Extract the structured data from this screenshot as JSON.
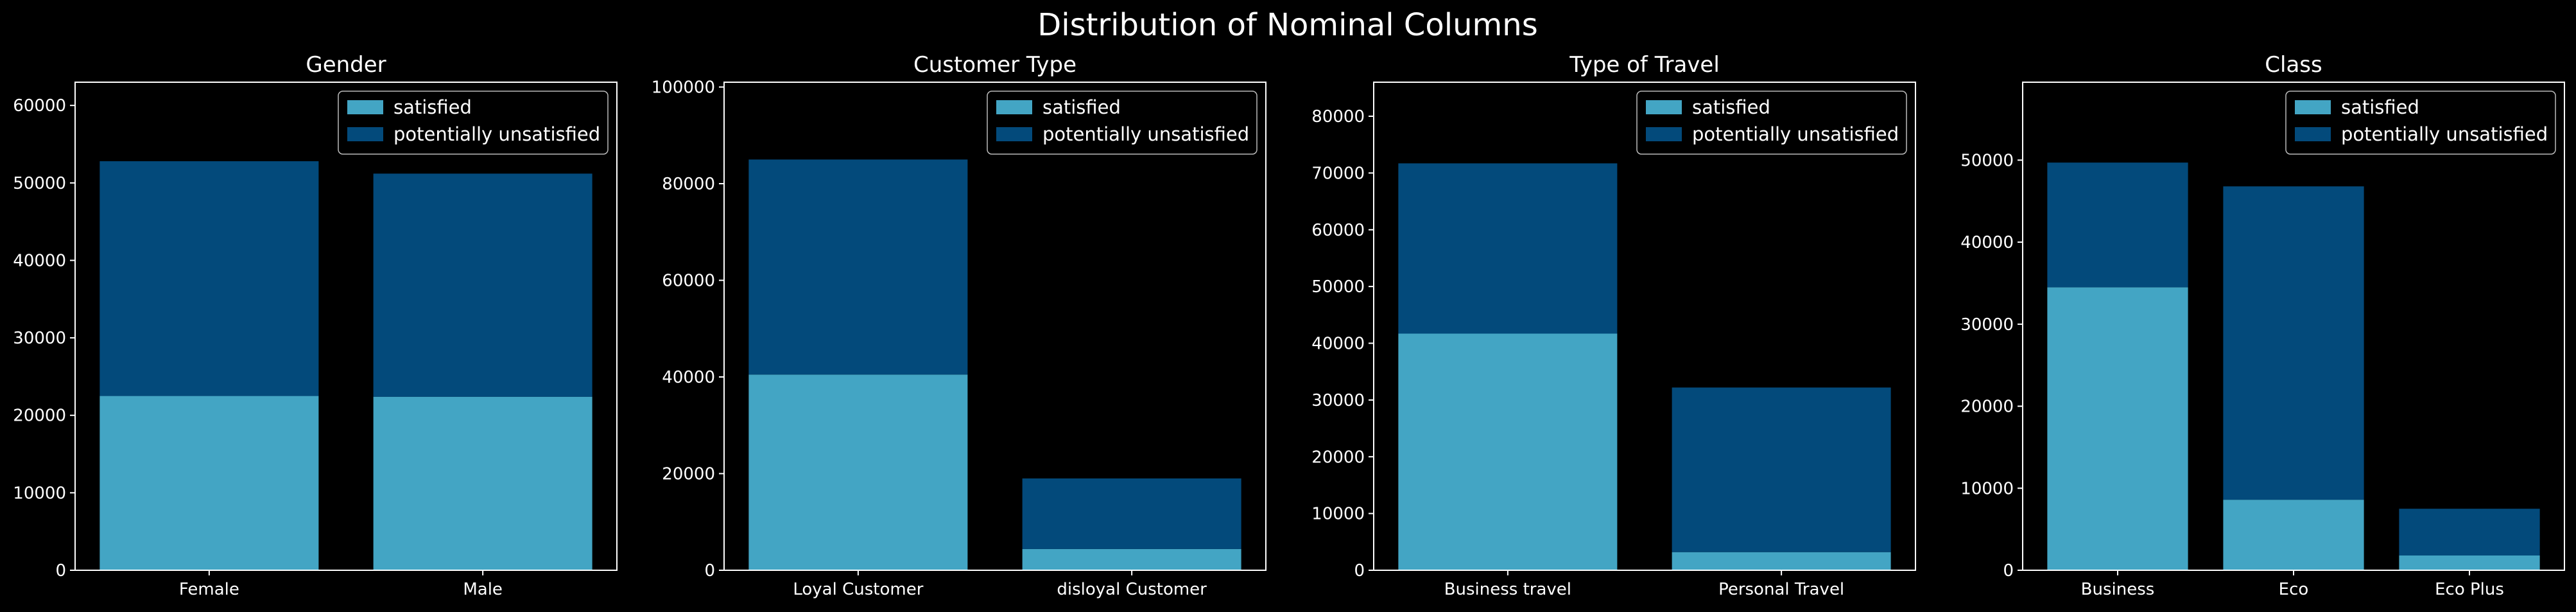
{
  "figure_title": "Distribution of Nominal Columns",
  "legend_labels": [
    "satisfied",
    "potentially unsatisfied"
  ],
  "colors": {
    "satisfied": "#43a5c4",
    "potentially_unsatisfied": "#034a7b",
    "background": "#000000",
    "foreground": "#ffffff"
  },
  "chart_data": [
    {
      "type": "bar",
      "stacked": true,
      "title": "Gender",
      "categories": [
        "Female",
        "Male"
      ],
      "series": [
        {
          "name": "satisfied",
          "values": [
            22500,
            22400
          ]
        },
        {
          "name": "potentially unsatisfied",
          "values": [
            30300,
            28800
          ]
        }
      ],
      "ylim": [
        0,
        63000
      ],
      "yticks": [
        0,
        10000,
        20000,
        30000,
        40000,
        50000,
        60000
      ],
      "legend": "top-right",
      "grid": false
    },
    {
      "type": "bar",
      "stacked": true,
      "title": "Customer Type",
      "categories": [
        "Loyal Customer",
        "disloyal Customer"
      ],
      "series": [
        {
          "name": "satisfied",
          "values": [
            40500,
            4400
          ]
        },
        {
          "name": "potentially unsatisfied",
          "values": [
            44500,
            14600
          ]
        }
      ],
      "ylim": [
        0,
        101000
      ],
      "yticks": [
        0,
        20000,
        40000,
        60000,
        80000,
        100000
      ],
      "legend": "top-right",
      "grid": false
    },
    {
      "type": "bar",
      "stacked": true,
      "title": "Type of Travel",
      "categories": [
        "Business travel",
        "Personal Travel"
      ],
      "series": [
        {
          "name": "satisfied",
          "values": [
            41700,
            3200
          ]
        },
        {
          "name": "potentially unsatisfied",
          "values": [
            30000,
            29000
          ]
        }
      ],
      "ylim": [
        0,
        86000
      ],
      "yticks": [
        0,
        10000,
        20000,
        30000,
        40000,
        50000,
        60000,
        70000,
        80000
      ],
      "legend": "top-right",
      "grid": false
    },
    {
      "type": "bar",
      "stacked": true,
      "title": "Class",
      "categories": [
        "Business",
        "Eco",
        "Eco Plus"
      ],
      "series": [
        {
          "name": "satisfied",
          "values": [
            34500,
            8600,
            1800
          ]
        },
        {
          "name": "potentially unsatisfied",
          "values": [
            15200,
            38200,
            5700
          ]
        }
      ],
      "ylim": [
        0,
        59500
      ],
      "yticks": [
        0,
        10000,
        20000,
        30000,
        40000,
        50000
      ],
      "legend": "top-right",
      "grid": false
    }
  ]
}
